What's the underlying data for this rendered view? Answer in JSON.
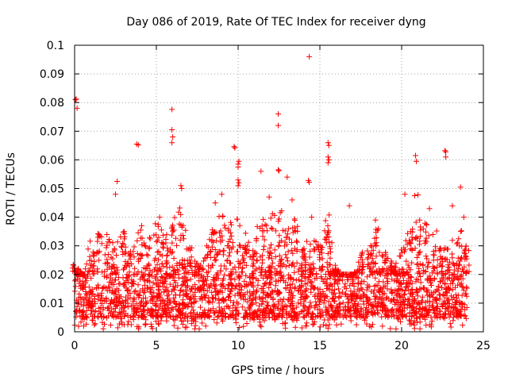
{
  "chart_data": {
    "type": "scatter",
    "title": "Day 086 of 2019, Rate Of TEC Index for receiver dyng",
    "xlabel": "GPS time / hours",
    "ylabel": "ROTI / TECUs",
    "xlim": [
      0,
      25
    ],
    "ylim": [
      0,
      0.1
    ],
    "xticks": [
      0,
      5,
      10,
      15,
      20,
      25
    ],
    "xtick_labels": [
      "0",
      "5",
      "10",
      "15",
      "20",
      "25"
    ],
    "yticks": [
      0,
      0.01,
      0.02,
      0.03,
      0.04,
      0.05,
      0.06,
      0.07,
      0.08,
      0.09,
      0.1
    ],
    "ytick_labels": [
      "0",
      "0.01",
      "0.02",
      "0.03",
      "0.04",
      "0.05",
      "0.06",
      "0.07",
      "0.08",
      "0.09",
      "0.1"
    ],
    "grid": true,
    "marker": "+",
    "color": "#ff0000",
    "bulk": {
      "x_range": [
        0,
        24
      ],
      "n": 2600,
      "typical_range": [
        0.005,
        0.02
      ],
      "floor": 0.001
    },
    "envelope": [
      [
        0.0,
        0.024
      ],
      [
        0.5,
        0.02
      ],
      [
        1.0,
        0.032
      ],
      [
        1.5,
        0.035
      ],
      [
        2.0,
        0.034
      ],
      [
        2.5,
        0.032
      ],
      [
        3.0,
        0.035
      ],
      [
        3.5,
        0.03
      ],
      [
        4.0,
        0.036
      ],
      [
        4.5,
        0.032
      ],
      [
        5.0,
        0.038
      ],
      [
        5.5,
        0.034
      ],
      [
        6.0,
        0.04
      ],
      [
        6.5,
        0.046
      ],
      [
        7.0,
        0.03
      ],
      [
        7.5,
        0.024
      ],
      [
        8.0,
        0.03
      ],
      [
        8.5,
        0.036
      ],
      [
        9.0,
        0.042
      ],
      [
        9.5,
        0.038
      ],
      [
        10.0,
        0.04
      ],
      [
        10.5,
        0.034
      ],
      [
        11.0,
        0.036
      ],
      [
        11.5,
        0.04
      ],
      [
        12.0,
        0.042
      ],
      [
        12.5,
        0.044
      ],
      [
        13.0,
        0.036
      ],
      [
        13.5,
        0.04
      ],
      [
        14.0,
        0.03
      ],
      [
        14.5,
        0.034
      ],
      [
        15.0,
        0.032
      ],
      [
        15.5,
        0.042
      ],
      [
        16.0,
        0.022
      ],
      [
        16.5,
        0.018
      ],
      [
        17.0,
        0.02
      ],
      [
        17.5,
        0.028
      ],
      [
        18.0,
        0.03
      ],
      [
        18.5,
        0.036
      ],
      [
        19.0,
        0.028
      ],
      [
        19.5,
        0.024
      ],
      [
        20.0,
        0.03
      ],
      [
        20.5,
        0.036
      ],
      [
        21.0,
        0.04
      ],
      [
        21.5,
        0.038
      ],
      [
        22.0,
        0.036
      ],
      [
        22.5,
        0.03
      ],
      [
        23.0,
        0.032
      ],
      [
        23.5,
        0.036
      ],
      [
        24.0,
        0.03
      ]
    ],
    "highlights": [
      {
        "x": 0.05,
        "y": 0.081
      },
      {
        "x": 0.1,
        "y": 0.0812
      },
      {
        "x": 0.15,
        "y": 0.078
      },
      {
        "x": 3.8,
        "y": 0.0655
      },
      {
        "x": 3.9,
        "y": 0.0652
      },
      {
        "x": 5.95,
        "y": 0.0776
      },
      {
        "x": 5.95,
        "y": 0.0705
      },
      {
        "x": 6.0,
        "y": 0.068
      },
      {
        "x": 5.95,
        "y": 0.066
      },
      {
        "x": 9.75,
        "y": 0.0646
      },
      {
        "x": 9.8,
        "y": 0.0642
      },
      {
        "x": 10.05,
        "y": 0.0595
      },
      {
        "x": 10.0,
        "y": 0.0585
      },
      {
        "x": 10.0,
        "y": 0.0575
      },
      {
        "x": 10.0,
        "y": 0.053
      },
      {
        "x": 10.05,
        "y": 0.052
      },
      {
        "x": 10.0,
        "y": 0.051
      },
      {
        "x": 11.4,
        "y": 0.056
      },
      {
        "x": 12.45,
        "y": 0.076
      },
      {
        "x": 12.45,
        "y": 0.072
      },
      {
        "x": 12.45,
        "y": 0.0565
      },
      {
        "x": 12.5,
        "y": 0.0562
      },
      {
        "x": 13.0,
        "y": 0.054
      },
      {
        "x": 14.35,
        "y": 0.096
      },
      {
        "x": 14.3,
        "y": 0.0528
      },
      {
        "x": 14.35,
        "y": 0.0522
      },
      {
        "x": 15.5,
        "y": 0.066
      },
      {
        "x": 15.55,
        "y": 0.065
      },
      {
        "x": 15.5,
        "y": 0.061
      },
      {
        "x": 15.55,
        "y": 0.06
      },
      {
        "x": 15.5,
        "y": 0.059
      },
      {
        "x": 2.6,
        "y": 0.0525
      },
      {
        "x": 2.5,
        "y": 0.048
      },
      {
        "x": 6.5,
        "y": 0.051
      },
      {
        "x": 6.55,
        "y": 0.05
      },
      {
        "x": 9.0,
        "y": 0.048
      },
      {
        "x": 20.2,
        "y": 0.048
      },
      {
        "x": 20.85,
        "y": 0.0615
      },
      {
        "x": 20.9,
        "y": 0.0595
      },
      {
        "x": 20.8,
        "y": 0.0475
      },
      {
        "x": 21.0,
        "y": 0.0478
      },
      {
        "x": 22.65,
        "y": 0.0632
      },
      {
        "x": 22.7,
        "y": 0.0628
      },
      {
        "x": 22.7,
        "y": 0.061
      },
      {
        "x": 23.6,
        "y": 0.0505
      },
      {
        "x": 16.8,
        "y": 0.044
      },
      {
        "x": 4.1,
        "y": 0.037
      },
      {
        "x": 5.2,
        "y": 0.04
      },
      {
        "x": 8.6,
        "y": 0.045
      },
      {
        "x": 11.9,
        "y": 0.047
      },
      {
        "x": 13.3,
        "y": 0.046
      },
      {
        "x": 14.5,
        "y": 0.04
      },
      {
        "x": 18.4,
        "y": 0.039
      },
      {
        "x": 21.7,
        "y": 0.043
      },
      {
        "x": 23.1,
        "y": 0.044
      },
      {
        "x": 23.8,
        "y": 0.04
      }
    ]
  }
}
